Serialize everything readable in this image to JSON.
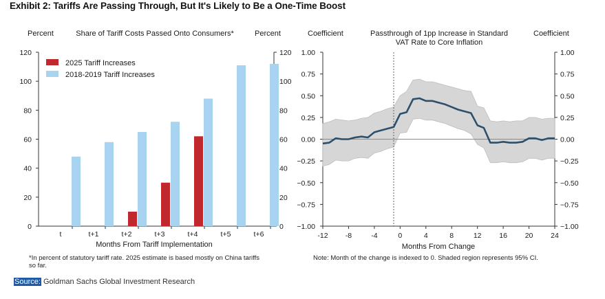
{
  "exhibit_title": "Exhibit 2: Tariffs Are Passing Through, But It's Likely to Be a One-Time Boost",
  "source": {
    "label": "Source:",
    "text": " Goldman Sachs Global Investment Research"
  },
  "chart_data": [
    {
      "type": "bar",
      "title": "Share of Tariff Costs Passed Onto Consumers*",
      "ylabel_left": "Percent",
      "ylabel_right": "Percent",
      "xlabel": "Months From Tariff Implementation",
      "ylim": [
        0,
        120
      ],
      "yticks": [
        0,
        20,
        40,
        60,
        80,
        100,
        120
      ],
      "categories": [
        "t",
        "t+1",
        "t+2",
        "t+3",
        "t+4",
        "t+5",
        "t+6"
      ],
      "series": [
        {
          "name": "2025 Tariff Increases",
          "color": "#c0282d",
          "values": [
            null,
            null,
            10,
            30,
            62,
            null,
            null
          ]
        },
        {
          "name": "2018-2019 Tariff Increases",
          "color": "#a9d4ef",
          "values": [
            48,
            58,
            65,
            72,
            88,
            111,
            112
          ]
        }
      ],
      "footnote": "*In percent of statutory tariff rate. 2025 estimate is based mostly on China tariffs so far."
    },
    {
      "type": "line",
      "title": "Passthrough of 1pp Increase in Standard VAT Rate to Core Inflation",
      "ylabel_left": "Coefficient",
      "ylabel_right": "Coefficient",
      "xlabel": "Months From Change",
      "xlim": [
        -12,
        24
      ],
      "ylim": [
        -1.0,
        1.0
      ],
      "xticks": [
        -12,
        -8,
        -4,
        0,
        4,
        8,
        12,
        16,
        20,
        24
      ],
      "yticks": [
        "1.00",
        "0.75",
        "0.50",
        "0.25",
        "0.00",
        "-0.25",
        "-0.50",
        "-0.75",
        "-1.00"
      ],
      "event_x": -1,
      "line_color": "#2c4f6b",
      "band_color": "#d6d6d6",
      "x": [
        -12,
        -11,
        -10,
        -9,
        -8,
        -7,
        -6,
        -5,
        -4,
        -3,
        -2,
        -1,
        0,
        1,
        2,
        3,
        4,
        5,
        6,
        7,
        8,
        9,
        10,
        11,
        12,
        13,
        14,
        15,
        16,
        17,
        18,
        19,
        20,
        21,
        22,
        23,
        24
      ],
      "estimate": [
        -0.05,
        -0.04,
        0.01,
        0.0,
        0.0,
        0.02,
        0.03,
        0.02,
        0.08,
        0.1,
        0.12,
        0.14,
        0.29,
        0.31,
        0.46,
        0.47,
        0.44,
        0.44,
        0.42,
        0.4,
        0.37,
        0.34,
        0.32,
        0.3,
        0.16,
        0.13,
        -0.04,
        -0.04,
        -0.03,
        -0.04,
        -0.04,
        -0.03,
        0.01,
        0.01,
        -0.01,
        0.01,
        0.01
      ],
      "upper": [
        0.18,
        0.2,
        0.23,
        0.22,
        0.21,
        0.22,
        0.24,
        0.25,
        0.3,
        0.32,
        0.35,
        0.37,
        0.5,
        0.55,
        0.68,
        0.69,
        0.66,
        0.66,
        0.64,
        0.62,
        0.6,
        0.58,
        0.56,
        0.55,
        0.38,
        0.36,
        0.21,
        0.2,
        0.21,
        0.2,
        0.21,
        0.21,
        0.25,
        0.25,
        0.23,
        0.24,
        0.24
      ],
      "lower": [
        -0.31,
        -0.29,
        -0.24,
        -0.25,
        -0.25,
        -0.22,
        -0.21,
        -0.22,
        -0.16,
        -0.14,
        -0.11,
        -0.09,
        0.07,
        0.08,
        0.23,
        0.24,
        0.22,
        0.22,
        0.2,
        0.18,
        0.15,
        0.12,
        0.1,
        0.06,
        -0.06,
        -0.1,
        -0.27,
        -0.27,
        -0.26,
        -0.27,
        -0.27,
        -0.26,
        -0.22,
        -0.22,
        -0.24,
        -0.22,
        -0.22
      ],
      "footnote": "Note: Month of the change is indexed to 0. Shaded region represents 95% CI."
    }
  ]
}
